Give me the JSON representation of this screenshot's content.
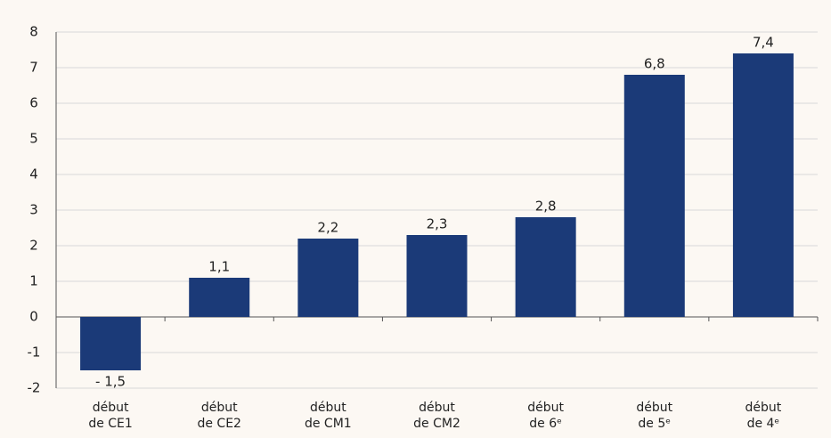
{
  "chart_data": {
    "type": "bar",
    "categories": [
      [
        "début",
        "de CE1"
      ],
      [
        "début",
        "de CE2"
      ],
      [
        "début",
        "de CM1"
      ],
      [
        "début",
        "de CM2"
      ],
      [
        "début",
        "de 6ᵉ"
      ],
      [
        "début",
        "de 5ᵉ"
      ],
      [
        "début",
        "de 4ᵉ"
      ]
    ],
    "values": [
      -1.5,
      1.1,
      2.2,
      2.3,
      2.8,
      6.8,
      7.4
    ],
    "value_labels": [
      "- 1,5",
      "1,1",
      "2,2",
      "2,3",
      "2,8",
      "6,8",
      "7,4"
    ],
    "color": "#1b3a78",
    "ylim": [
      -2,
      8
    ],
    "yticks": [
      -2,
      -1,
      0,
      1,
      2,
      3,
      4,
      5,
      6,
      7,
      8
    ],
    "grid": true
  }
}
